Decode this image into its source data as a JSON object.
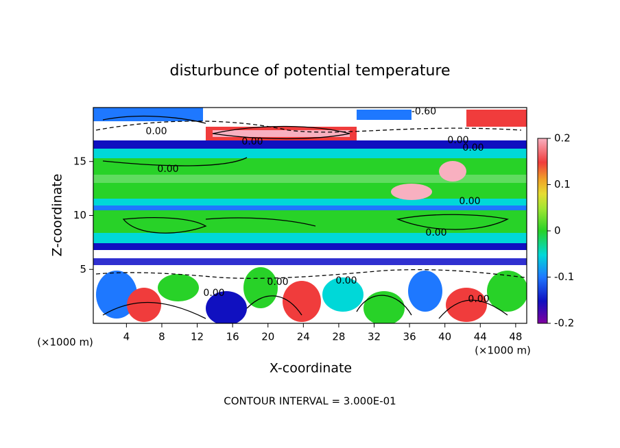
{
  "chart_data": {
    "type": "contour",
    "title": "disturbunce of potential temperature",
    "xlabel": "X-coordinate",
    "ylabel": "Z-coordinate",
    "xunit": "(×1000 m)",
    "yunit": "(×1000 m)",
    "xlim": [
      0.25,
      49.25
    ],
    "ylim": [
      0,
      20
    ],
    "xticks": [
      4,
      8,
      12,
      16,
      20,
      24,
      28,
      32,
      36,
      40,
      44,
      48
    ],
    "yticks": [
      5,
      10,
      15
    ],
    "colorbar": {
      "lim": [
        -0.2,
        0.2
      ],
      "ticks": [
        0.2,
        0.1,
        0,
        -0.1,
        -0.2
      ]
    },
    "contour_labels": [
      "-0.60",
      "0.00",
      "0.00",
      "0.00",
      "0.00",
      "0.00",
      "0.00",
      "0.00",
      "0.00",
      "0.00",
      "0.00",
      "0.00"
    ],
    "footer": "CONTOUR INTERVAL = 3.000E-01"
  }
}
